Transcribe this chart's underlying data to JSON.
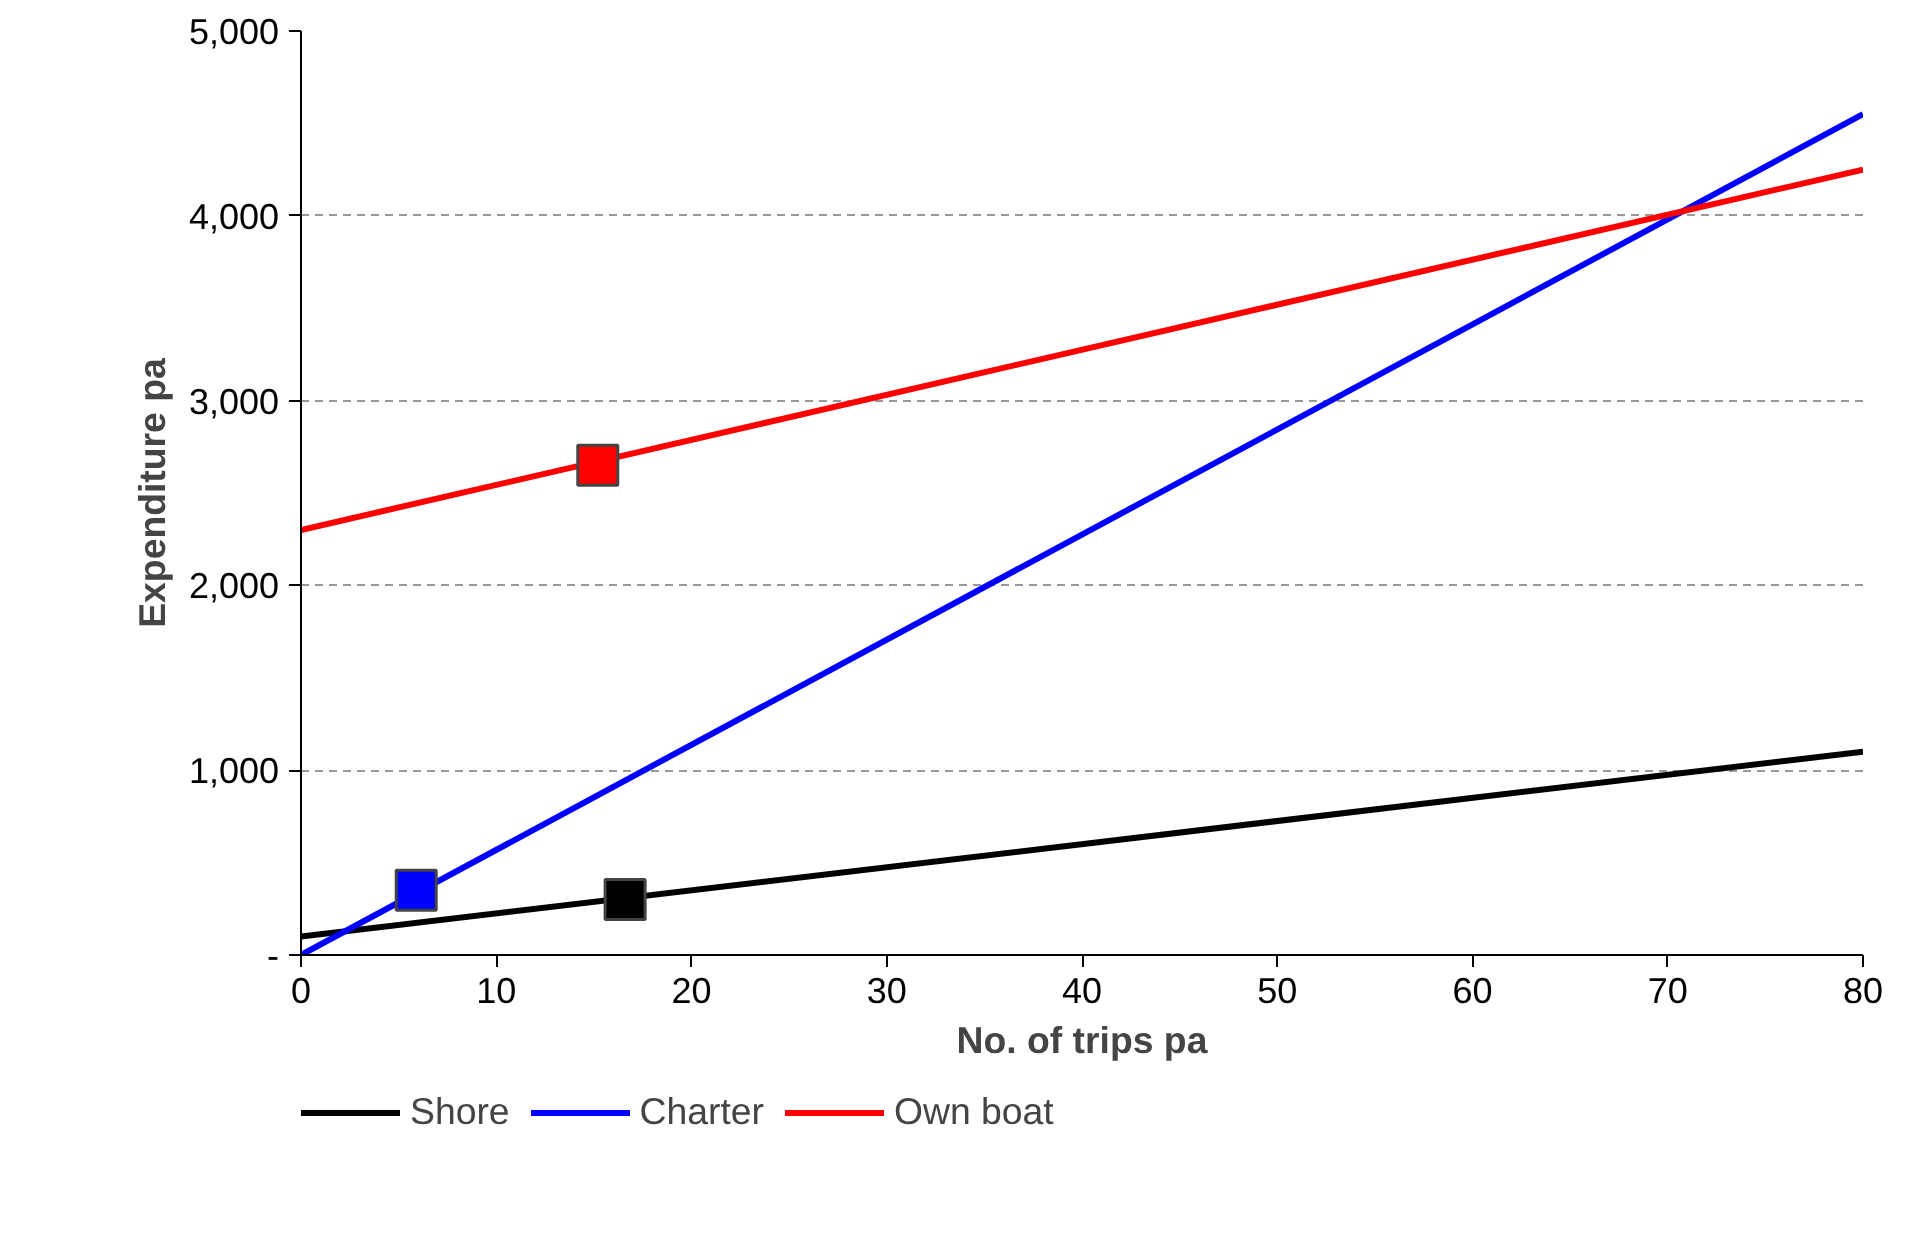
{
  "chart_data": {
    "type": "line",
    "xlabel": "No. of trips pa",
    "ylabel": "Expenditure pa",
    "xlim": [
      0,
      80
    ],
    "xticks": [
      0,
      10,
      20,
      30,
      40,
      50,
      60,
      70,
      80
    ],
    "ylim": [
      0,
      5000
    ],
    "yticks": [
      {
        "value": 0,
        "label": "-"
      },
      {
        "value": 1000,
        "label": "1,000"
      },
      {
        "value": 2000,
        "label": "2,000"
      },
      {
        "value": 3000,
        "label": "3,000"
      },
      {
        "value": 4000,
        "label": "4,000"
      },
      {
        "value": 5000,
        "label": "5,000"
      }
    ],
    "grid": "y",
    "legend": "bottom",
    "marker": "none",
    "line_style": "solid",
    "series": [
      {
        "name": "Shore",
        "color": "#000000",
        "x": [
          0,
          80
        ],
        "values": [
          100,
          1100
        ]
      },
      {
        "name": "Charter",
        "color": "#0000ff",
        "x": [
          0,
          80
        ],
        "values": [
          0,
          4550
        ]
      },
      {
        "name": "Own boat",
        "color": "#ff0000",
        "x": [
          0,
          80
        ],
        "values": [
          2300,
          4250
        ]
      },
      {
        "type": "scatter",
        "marker": "square",
        "x": [
          16.6,
          5.9,
          15.2
        ],
        "values": [
          300,
          350,
          2650
        ],
        "colors": [
          "#000000",
          "#0000ff",
          "#ff0000"
        ]
      }
    ]
  }
}
